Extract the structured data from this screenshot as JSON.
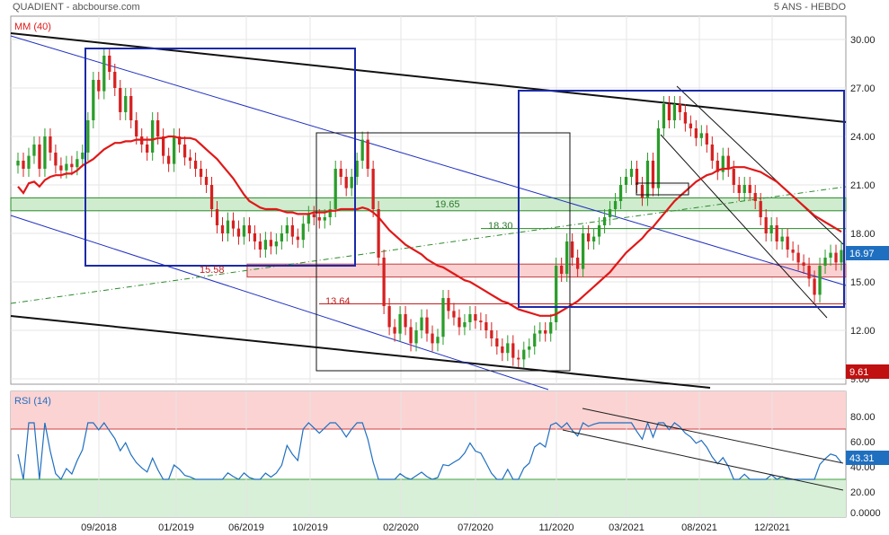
{
  "header": {
    "title": "QUADIENT - abcbourse.com",
    "period": "5 ANS - HEBDO"
  },
  "price_badge": "16.97",
  "low_badge": "9.61",
  "rsi_badge": "43.31",
  "levels": {
    "l1": "19.65",
    "l2": "18.30",
    "l3": "15.58",
    "l4": "13.64"
  },
  "colors": {
    "up": "#2a9d2a",
    "down": "#d62020",
    "ma": "#e01818",
    "rsi": "#1f6fc0",
    "grid": "#e6e6e6",
    "box": "#1a2aa8",
    "badge": "#1f6fc0",
    "low_badge": "#c01010"
  },
  "chart_data": [
    {
      "type": "candlestick",
      "title": "",
      "legend": "MM (40)",
      "x_ticks": [
        "09/2018",
        "01/2019",
        "06/2019",
        "10/2019",
        "02/2020",
        "07/2020",
        "11/2020",
        "03/2021",
        "08/2021",
        "12/2021"
      ],
      "y_ticks": [
        "30.00",
        "27.00",
        "24.00",
        "21.00",
        "18.00",
        "15.00",
        "12.00",
        "9.00"
      ],
      "ylim": [
        9,
        31
      ],
      "close_series": [
        22.5,
        22.0,
        22.8,
        23.5,
        22.0,
        24.0,
        23.0,
        22.2,
        21.9,
        22.3,
        22.1,
        22.6,
        23.0,
        25.0,
        27.5,
        26.8,
        29.0,
        28.0,
        27.0,
        25.5,
        26.5,
        25.0,
        24.0,
        23.5,
        23.0,
        25.0,
        24.0,
        22.8,
        22.3,
        24.0,
        23.5,
        22.7,
        22.5,
        22.0,
        21.5,
        21.0,
        19.5,
        18.5,
        18.0,
        18.8,
        18.3,
        17.8,
        18.5,
        18.0,
        17.5,
        17.0,
        17.6,
        17.2,
        17.5,
        18.0,
        18.5,
        17.8,
        17.6,
        18.6,
        19.2,
        19.0,
        18.8,
        19.0,
        19.5,
        22.0,
        21.5,
        20.8,
        21.5,
        22.5,
        23.8,
        22.0,
        19.5,
        16.5,
        13.5,
        12.2,
        11.8,
        13.0,
        12.2,
        11.2,
        12.0,
        12.8,
        11.8,
        11.2,
        11.6,
        14.0,
        13.2,
        12.8,
        12.2,
        12.5,
        13.0,
        12.6,
        12.5,
        12.0,
        11.5,
        11.0,
        10.6,
        11.2,
        10.3,
        10.2,
        10.8,
        11.0,
        11.8,
        12.0,
        11.8,
        12.5,
        16.0,
        15.5,
        17.5,
        16.5,
        15.8,
        18.0,
        17.5,
        17.8,
        18.5,
        19.0,
        19.5,
        20.0,
        21.0,
        21.5,
        22.0,
        21.0,
        20.2,
        22.5,
        20.8,
        24.5,
        26.0,
        25.0,
        26.0,
        25.5,
        24.8,
        24.5,
        23.9,
        24.2,
        23.5,
        22.5,
        21.8,
        22.8,
        22.0,
        21.0,
        20.5,
        21.0,
        20.5,
        20.0,
        19.0,
        18.0,
        18.5,
        17.5,
        17.8,
        17.0,
        16.8,
        16.2,
        16.0,
        15.2,
        14.2,
        16.0,
        16.5,
        16.8,
        16.2,
        16.97
      ],
      "ma40_series": [
        20.9,
        20.5,
        21.1,
        21.2,
        20.9,
        21.3,
        21.5,
        21.6,
        21.6,
        21.7,
        21.7,
        21.9,
        22.2,
        22.4,
        22.6,
        22.9,
        23.2,
        23.4,
        23.6,
        23.6,
        23.7,
        23.7,
        23.8,
        23.8,
        23.8,
        23.8,
        23.9,
        23.9,
        24.0,
        24.0,
        23.9,
        23.9,
        23.9,
        23.8,
        23.5,
        23.2,
        22.9,
        22.6,
        22.2,
        21.8,
        21.4,
        20.9,
        20.4,
        20.0,
        19.8,
        19.6,
        19.5,
        19.5,
        19.5,
        19.4,
        19.3,
        19.3,
        19.2,
        19.2,
        19.2,
        19.3,
        19.3,
        19.3,
        19.4,
        19.4,
        19.5,
        19.5,
        19.5,
        19.5,
        19.6,
        19.5,
        19.3,
        19.0,
        18.6,
        18.2,
        17.9,
        17.6,
        17.3,
        17.1,
        16.9,
        16.7,
        16.4,
        16.2,
        16.0,
        15.9,
        15.7,
        15.5,
        15.3,
        15.1,
        15.0,
        14.8,
        14.6,
        14.4,
        14.2,
        14.0,
        13.8,
        13.7,
        13.5,
        13.3,
        13.2,
        13.1,
        13.0,
        12.9,
        12.9,
        12.9,
        13.0,
        13.2,
        13.4,
        13.6,
        13.8,
        14.1,
        14.4,
        14.7,
        15.0,
        15.3,
        15.6,
        16.0,
        16.4,
        16.8,
        17.1,
        17.4,
        17.7,
        18.1,
        18.4,
        18.8,
        19.2,
        19.6,
        20.0,
        20.3,
        20.6,
        20.9,
        21.2,
        21.4,
        21.6,
        21.7,
        21.9,
        22.0,
        22.0,
        22.1,
        22.1,
        22.1,
        22.0,
        21.9,
        21.8,
        21.6,
        21.4,
        21.2,
        20.9,
        20.6,
        20.3,
        20.0,
        19.7,
        19.4,
        19.1,
        18.9,
        18.7,
        18.5,
        18.3,
        18.1
      ],
      "horizontal_levels": [
        19.65,
        18.3,
        15.58,
        13.64
      ],
      "last_price": 16.97,
      "low": 9.61
    },
    {
      "type": "line",
      "title": "",
      "legend": "RSI (14)",
      "y_ticks": [
        "80.00",
        "60.00",
        "40.00",
        "20.00",
        "0.0000"
      ],
      "ylim": [
        0,
        100
      ],
      "zones": {
        "overbought": 70,
        "oversold": 30
      },
      "last_value": 43.31
    }
  ]
}
